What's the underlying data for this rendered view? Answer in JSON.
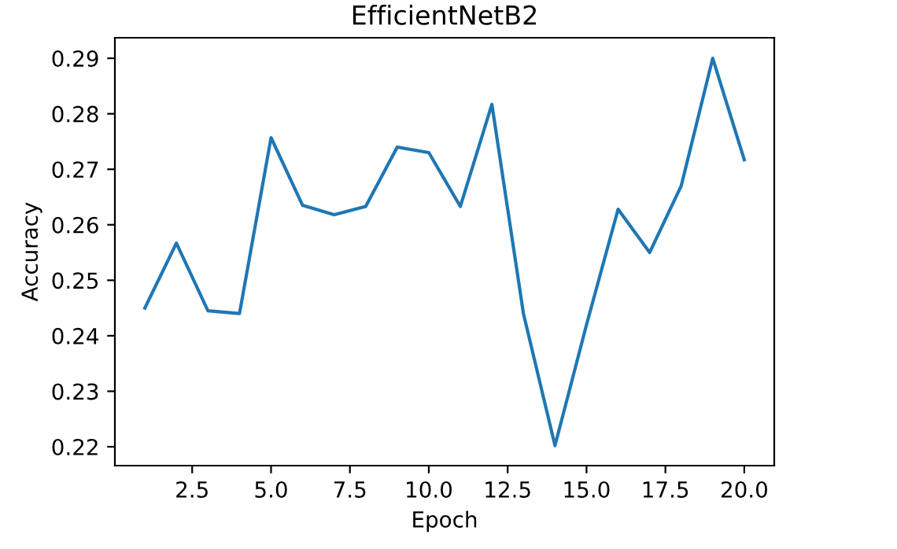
{
  "chart_data": {
    "type": "line",
    "title": "EfficientNetB2",
    "xlabel": "Epoch",
    "ylabel": "Accuracy",
    "x": [
      1,
      2,
      3,
      4,
      5,
      6,
      7,
      8,
      9,
      10,
      11,
      12,
      13,
      14,
      15,
      16,
      17,
      18,
      19,
      20
    ],
    "series": [
      {
        "color": "#1f77b4",
        "values": [
          0.245,
          0.2567,
          0.2445,
          0.244,
          0.2757,
          0.2635,
          0.2618,
          0.2633,
          0.274,
          0.273,
          0.2633,
          0.2817,
          0.244,
          0.2202,
          0.242,
          0.2628,
          0.255,
          0.267,
          0.29,
          0.2717
        ]
      }
    ],
    "xlim": [
      0.05,
      20.95
    ],
    "ylim": [
      0.2166,
      0.2937
    ],
    "xticks": [
      {
        "value": 2.5,
        "label": "2.5"
      },
      {
        "value": 5,
        "label": "5.0"
      },
      {
        "value": 7.5,
        "label": "7.5"
      },
      {
        "value": 10,
        "label": "10.0"
      },
      {
        "value": 12.5,
        "label": "12.5"
      },
      {
        "value": 15,
        "label": "15.0"
      },
      {
        "value": 17.5,
        "label": "17.5"
      },
      {
        "value": 20,
        "label": "20.0"
      }
    ],
    "yticks": [
      0.22,
      0.23,
      0.24,
      0.25,
      0.26,
      0.27,
      0.28,
      0.29
    ],
    "marker": "none"
  }
}
